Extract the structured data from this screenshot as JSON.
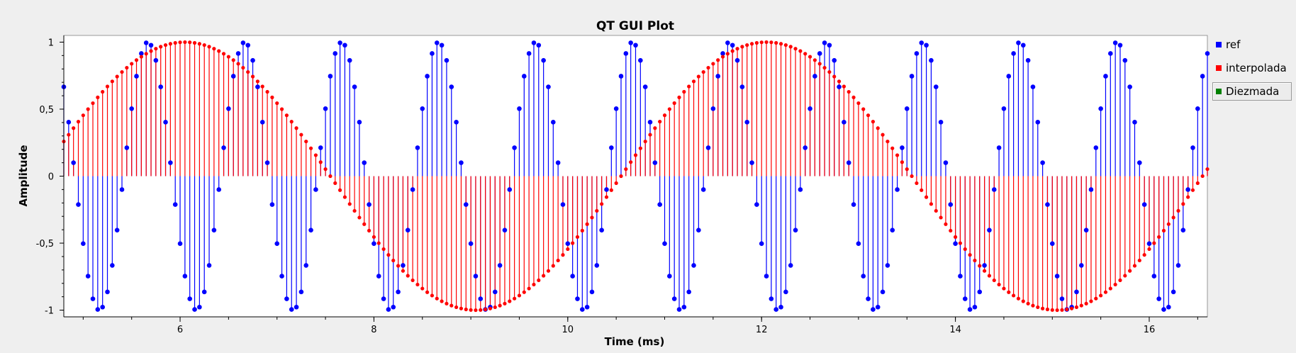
{
  "chart_data": {
    "type": "line",
    "title": "QT GUI Plot",
    "xlabel": "Time (ms)",
    "ylabel": "Amplitude",
    "xlim": [
      4.8,
      16.6
    ],
    "ylim": [
      -1.05,
      1.05
    ],
    "x_ticks": [
      6,
      8,
      10,
      12,
      14,
      16
    ],
    "x_tick_labels": [
      "6",
      "8",
      "10",
      "12",
      "14",
      "16"
    ],
    "y_ticks": [
      1,
      0.5,
      0,
      -0.5,
      -1
    ],
    "y_tick_labels": [
      "1",
      "0,5",
      "0",
      "-0,5",
      "-1"
    ],
    "grid": false,
    "legend_position": "right",
    "sample_period_ms": 0.05,
    "series": [
      {
        "name": "ref",
        "color": "#0000ff",
        "style": "stem",
        "marker": "circle",
        "waveform": "sine",
        "frequency_hz": 1000,
        "amplitude": 1,
        "peak_at_ms": 5.666
      },
      {
        "name": "interpolada",
        "color": "#ff0000",
        "style": "stem",
        "marker": "circle",
        "waveform": "sine",
        "frequency_hz": 166.67,
        "amplitude": 1,
        "peak_at_ms": 6.05
      },
      {
        "name": "Diezmada",
        "color": "#008000",
        "style": "stem",
        "visible": false
      }
    ]
  }
}
